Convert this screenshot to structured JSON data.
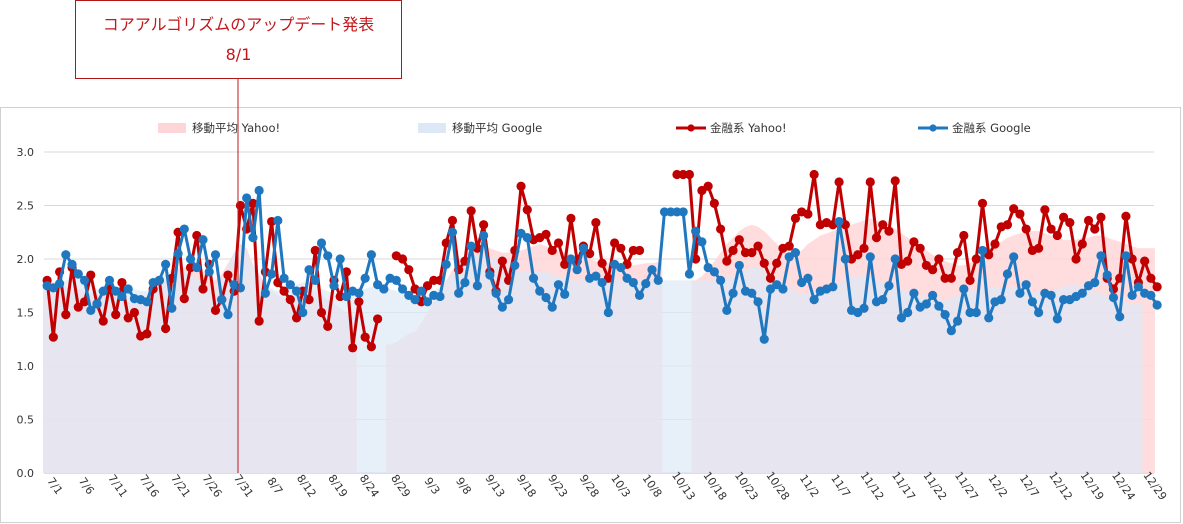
{
  "annotation": {
    "title": "コアアルゴリズムのアップデート発表",
    "date": "8/1",
    "line_color": "#c0181c"
  },
  "colors": {
    "yahoo_line": "#c00000",
    "google_line": "#1f77c0",
    "yahoo_area": "#ffd6d8",
    "google_area": "#dde8f6",
    "grid": "#d9d9d9"
  },
  "chart_data": {
    "type": "line",
    "title": "",
    "xlabel": "",
    "ylabel": "",
    "ylim": [
      0,
      3.0
    ],
    "yticks": [
      "0.0",
      "0.5",
      "1.0",
      "1.5",
      "2.0",
      "2.5",
      "3.0"
    ],
    "grid": true,
    "legend_position": "top",
    "xtick_labels": [
      "7/1",
      "7/6",
      "7/11",
      "7/16",
      "7/21",
      "7/26",
      "7/31",
      "8/7",
      "8/12",
      "8/19",
      "8/24",
      "8/29",
      "9/3",
      "9/8",
      "9/13",
      "9/18",
      "9/23",
      "9/28",
      "10/3",
      "10/8",
      "10/13",
      "10/18",
      "10/23",
      "10/28",
      "11/2",
      "11/7",
      "11/12",
      "11/17",
      "11/22",
      "11/27",
      "12/2",
      "12/7",
      "12/12",
      "12/19",
      "12/24",
      "12/29"
    ],
    "series": [
      {
        "name": "移動平均 Yahoo!",
        "kind": "area",
        "values": [
          1.78,
          1.78,
          1.76,
          1.74,
          1.72,
          1.72,
          1.7,
          1.68,
          1.66,
          1.66,
          1.66,
          1.66,
          1.6,
          1.6,
          1.6,
          1.62,
          1.66,
          1.7,
          1.74,
          1.8,
          1.86,
          1.9,
          1.92,
          1.92,
          1.9,
          1.88,
          1.82,
          1.8,
          1.86,
          1.96,
          2.06,
          2.14,
          2.1,
          1.95,
          1.86,
          1.76,
          1.7,
          1.66,
          1.64,
          1.66,
          1.7,
          1.74,
          1.74,
          1.7,
          1.66,
          1.62,
          1.58,
          1.54,
          1.5,
          1.46,
          null,
          null,
          null,
          null,
          null,
          1.2,
          1.22,
          1.26,
          1.3,
          1.32,
          1.4,
          1.5,
          1.6,
          1.7,
          1.8,
          1.9,
          1.98,
          2.04,
          2.08,
          2.1,
          2.12,
          2.1,
          2.08,
          2.06,
          2.06,
          2.06,
          2.08,
          2.1,
          2.12,
          2.14,
          2.12,
          2.1,
          2.08,
          2.06,
          2.04,
          2.02,
          2.02,
          2.0,
          1.98,
          1.96,
          1.96,
          1.95,
          1.94,
          1.94,
          1.94,
          1.95,
          1.96,
          1.96,
          1.97,
          null,
          null,
          null,
          null,
          null,
          1.8,
          1.84,
          1.9,
          1.98,
          2.06,
          2.14,
          2.2,
          2.26,
          2.3,
          2.32,
          2.3,
          2.26,
          2.2,
          2.14,
          2.08,
          2.04,
          2.04,
          2.08,
          2.14,
          2.18,
          2.22,
          2.24,
          2.26,
          2.28,
          2.3,
          2.32,
          2.34,
          2.36,
          2.38,
          2.36,
          2.34,
          2.32,
          2.28,
          2.24,
          2.2,
          2.16,
          2.12,
          2.08,
          2.04,
          2.0,
          1.98,
          1.96,
          1.94,
          1.94,
          1.96,
          2.0,
          2.04,
          2.08,
          2.12,
          2.16,
          2.2,
          2.22,
          2.24,
          2.26,
          2.26,
          2.26,
          2.24,
          2.22,
          2.2,
          2.18,
          2.18,
          2.18,
          2.2,
          2.2,
          2.22,
          2.22,
          2.2,
          2.18,
          2.16,
          2.14,
          2.12,
          2.1,
          2.1,
          2.1
        ]
      },
      {
        "name": "移動平均 Google",
        "kind": "area",
        "values": [
          1.76,
          1.76,
          1.78,
          1.8,
          1.82,
          1.82,
          1.8,
          1.76,
          1.72,
          1.7,
          1.7,
          1.72,
          1.74,
          1.74,
          1.72,
          1.7,
          1.7,
          1.74,
          1.8,
          1.86,
          1.9,
          1.92,
          1.9,
          1.86,
          1.82,
          1.78,
          1.72,
          1.7,
          1.8,
          1.94,
          2.06,
          2.12,
          2.06,
          1.94,
          1.84,
          1.76,
          1.72,
          1.7,
          1.7,
          1.72,
          1.76,
          1.78,
          1.78,
          1.76,
          1.72,
          1.7,
          1.68,
          1.68,
          1.68,
          1.68,
          1.7,
          1.72,
          1.74,
          1.76,
          1.74,
          1.72,
          1.7,
          1.68,
          1.66,
          1.64,
          1.64,
          1.66,
          1.7,
          1.74,
          1.8,
          1.86,
          1.92,
          1.98,
          2.02,
          2.04,
          2.04,
          2.02,
          2.0,
          1.96,
          1.92,
          1.9,
          1.88,
          1.88,
          1.88,
          1.88,
          1.88,
          1.86,
          1.84,
          1.82,
          1.8,
          1.8,
          1.8,
          1.8,
          1.8,
          1.8,
          1.8,
          1.8,
          1.8,
          1.8,
          1.8,
          1.8,
          1.8,
          1.8,
          1.8,
          1.8,
          1.8,
          1.8,
          1.8,
          1.8,
          1.8,
          1.8,
          1.8,
          1.8,
          1.8,
          1.82,
          1.84,
          1.88,
          1.9,
          1.92,
          1.92,
          1.9,
          1.86,
          1.82,
          1.78,
          1.74,
          1.7,
          1.68,
          1.68,
          1.7,
          1.72,
          1.74,
          1.76,
          1.78,
          1.8,
          1.82,
          1.84,
          1.84,
          1.82,
          1.8,
          1.78,
          1.76,
          1.74,
          1.72,
          1.7,
          1.68,
          1.66,
          1.64,
          1.62,
          1.62,
          1.62,
          1.64,
          1.66,
          1.68,
          1.7,
          1.72,
          1.74,
          1.74,
          1.74,
          1.74,
          1.74,
          1.74,
          1.74,
          1.72,
          1.7,
          1.7,
          1.7,
          1.7,
          1.72,
          1.74,
          1.76,
          1.76,
          1.74,
          1.72,
          1.7,
          1.68,
          1.66,
          1.64,
          1.62,
          1.6,
          1.58,
          1.58
        ]
      },
      {
        "name": "金融系 Yahoo!",
        "kind": "line",
        "values": [
          1.8,
          1.27,
          1.88,
          1.48,
          1.92,
          1.55,
          1.6,
          1.85,
          1.58,
          1.42,
          1.75,
          1.48,
          1.78,
          1.45,
          1.5,
          1.28,
          1.3,
          1.72,
          1.8,
          1.35,
          1.82,
          2.25,
          1.63,
          1.92,
          2.22,
          1.72,
          1.95,
          1.52,
          1.62,
          1.85,
          1.7,
          2.5,
          2.28,
          2.52,
          1.42,
          1.88,
          2.35,
          1.78,
          1.7,
          1.62,
          1.45,
          1.7,
          1.62,
          2.08,
          1.5,
          1.37,
          1.8,
          1.65,
          1.88,
          1.17,
          1.6,
          1.27,
          1.18,
          1.44,
          null,
          null,
          2.03,
          2.0,
          1.9,
          1.72,
          1.6,
          1.75,
          1.8,
          1.8,
          2.15,
          2.36,
          1.9,
          1.98,
          2.45,
          2.1,
          2.32,
          1.88,
          1.7,
          1.98,
          1.8,
          2.08,
          2.68,
          2.46,
          2.18,
          2.2,
          2.23,
          2.08,
          2.15,
          1.95,
          2.38,
          1.98,
          2.12,
          2.05,
          2.34,
          1.96,
          1.82,
          2.15,
          2.1,
          1.95,
          2.08,
          2.08,
          null,
          null,
          null,
          null,
          null,
          2.79,
          2.79,
          2.79,
          2.0,
          2.64,
          2.68,
          2.52,
          2.28,
          1.98,
          2.08,
          2.18,
          2.06,
          2.06,
          2.12,
          1.96,
          1.82,
          1.96,
          2.1,
          2.12,
          2.38,
          2.44,
          2.42,
          2.79,
          2.32,
          2.34,
          2.32,
          2.72,
          2.32,
          2.0,
          2.04,
          2.1,
          2.72,
          2.2,
          2.32,
          2.26,
          2.73,
          1.95,
          1.98,
          2.16,
          2.1,
          1.94,
          1.9,
          2.0,
          1.82,
          1.82,
          2.06,
          2.22,
          1.8,
          2.0,
          2.52,
          2.04,
          2.14,
          2.3,
          2.32,
          2.47,
          2.42,
          2.28,
          2.08,
          2.1,
          2.46,
          2.28,
          2.22,
          2.39,
          2.34,
          2.0,
          2.14,
          2.36,
          2.28,
          2.39,
          1.82,
          1.72,
          1.82,
          2.4,
          2.0,
          1.78,
          1.98,
          1.82,
          1.74
        ]
      },
      {
        "name": "金融系 Google",
        "kind": "line",
        "values": [
          1.75,
          1.73,
          1.77,
          2.04,
          1.95,
          1.86,
          1.8,
          1.52,
          1.58,
          1.7,
          1.8,
          1.7,
          1.65,
          1.72,
          1.63,
          1.62,
          1.6,
          1.78,
          1.8,
          1.95,
          1.54,
          2.05,
          2.28,
          2.0,
          1.92,
          2.18,
          1.88,
          2.04,
          1.62,
          1.48,
          1.76,
          1.73,
          2.57,
          2.2,
          2.64,
          1.68,
          1.86,
          2.36,
          1.82,
          1.76,
          1.7,
          1.5,
          1.9,
          1.8,
          2.15,
          2.03,
          1.75,
          2.0,
          1.65,
          1.7,
          1.68,
          1.82,
          2.04,
          1.76,
          1.72,
          1.82,
          1.8,
          1.72,
          1.66,
          1.62,
          1.7,
          1.6,
          1.66,
          1.65,
          1.95,
          2.25,
          1.68,
          1.78,
          2.12,
          1.75,
          2.22,
          1.85,
          1.68,
          1.55,
          1.62,
          1.94,
          2.24,
          2.2,
          1.82,
          1.7,
          1.64,
          1.55,
          1.76,
          1.67,
          2.0,
          1.9,
          2.1,
          1.82,
          1.84,
          1.78,
          1.5,
          1.95,
          1.92,
          1.82,
          1.78,
          1.66,
          1.77,
          1.9,
          1.8,
          2.44,
          2.44,
          2.44,
          2.44,
          1.86,
          2.26,
          2.16,
          1.92,
          1.88,
          1.8,
          1.52,
          1.68,
          1.94,
          1.7,
          1.68,
          1.6,
          1.25,
          1.72,
          1.76,
          1.72,
          2.02,
          2.06,
          1.78,
          1.82,
          1.62,
          1.7,
          1.72,
          1.74,
          2.35,
          2.0,
          1.52,
          1.5,
          1.54,
          2.02,
          1.6,
          1.62,
          1.75,
          2.0,
          1.45,
          1.5,
          1.68,
          1.55,
          1.58,
          1.66,
          1.56,
          1.48,
          1.33,
          1.42,
          1.72,
          1.5,
          1.5,
          2.08,
          1.45,
          1.6,
          1.62,
          1.86,
          2.02,
          1.68,
          1.76,
          1.6,
          1.5,
          1.68,
          1.66,
          1.44,
          1.62,
          1.62,
          1.65,
          1.68,
          1.75,
          1.78,
          2.03,
          1.85,
          1.64,
          1.46,
          2.03,
          1.66,
          1.74,
          1.68,
          1.66,
          1.57
        ]
      }
    ]
  }
}
